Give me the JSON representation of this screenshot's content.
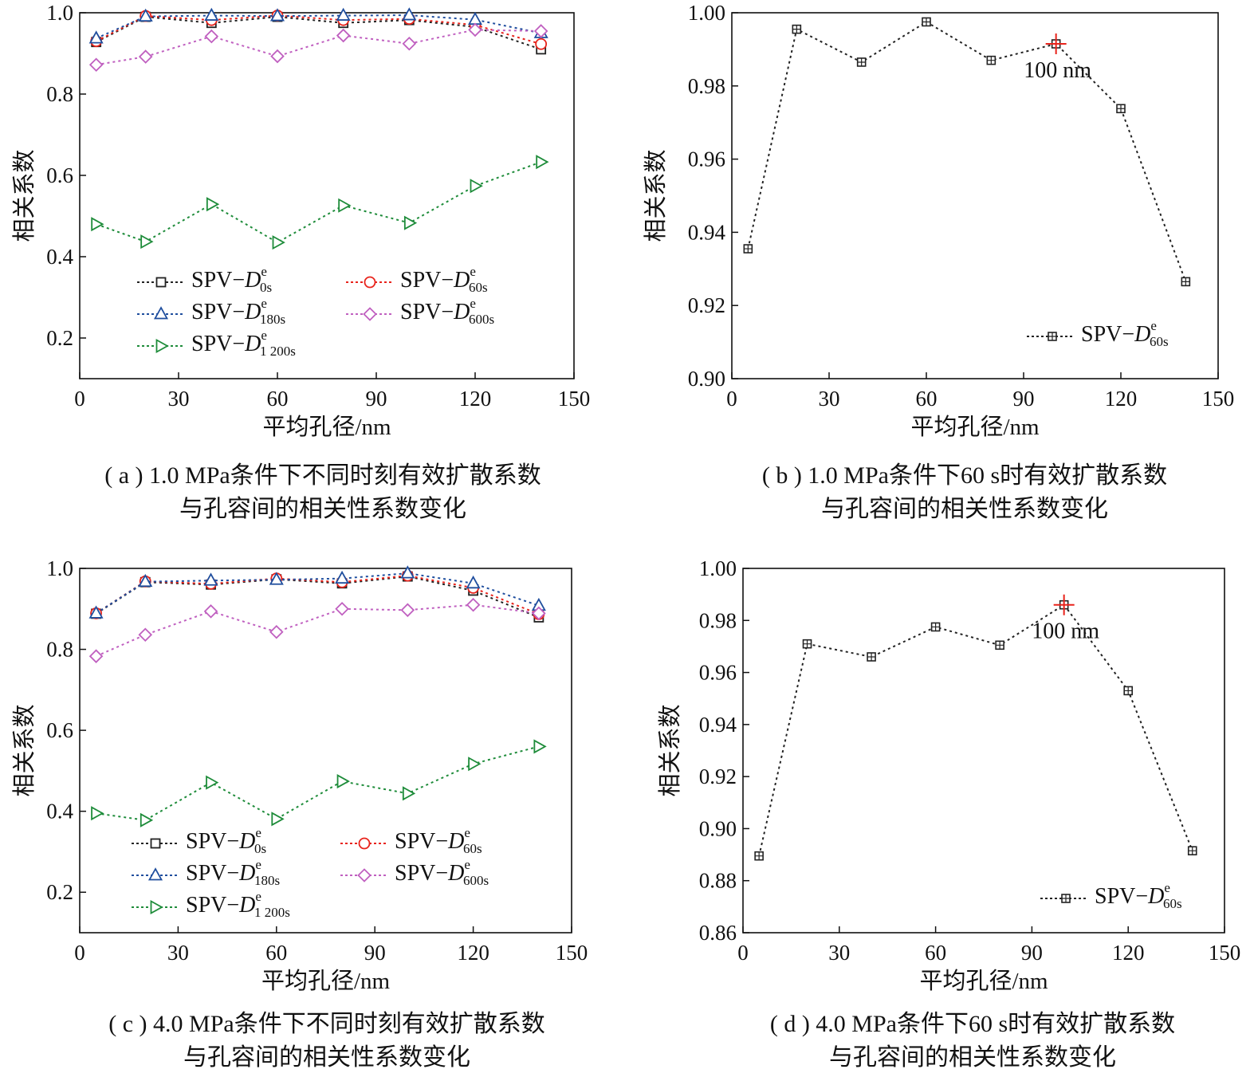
{
  "chart_data": [
    {
      "type": "line",
      "xlabel": "平均孔径/nm",
      "ylabel": "相关系数",
      "xlim": [
        0,
        150
      ],
      "ylim": [
        0.1,
        1.0
      ],
      "xticks": [
        "0",
        "30",
        "60",
        "90",
        "120",
        "150"
      ],
      "yticks": [
        "0.2",
        "0.4",
        "0.6",
        "0.8",
        "1.0"
      ],
      "x": [
        5,
        20,
        40,
        60,
        80,
        100,
        120,
        140
      ],
      "legend_position": "bottom-left",
      "caption_line1": "( a ) 1.0 MPa条件下不同时刻有效扩散系数",
      "caption_line2": "与孔容间的相关性系数变化",
      "series": [
        {
          "name": "SPV−D",
          "sup": "e",
          "sub": "0s",
          "color": "#222222",
          "marker": "square",
          "values": [
            0.928,
            0.99,
            0.975,
            0.99,
            0.975,
            0.982,
            0.965,
            0.91
          ]
        },
        {
          "name": "SPV−D",
          "sup": "e",
          "sub": "60s",
          "color": "#e8231b",
          "marker": "circle",
          "values": [
            0.93,
            0.992,
            0.982,
            0.993,
            0.982,
            0.985,
            0.97,
            0.923
          ]
        },
        {
          "name": "SPV−D",
          "sup": "e",
          "sub": "180s",
          "color": "#1f4e9e",
          "marker": "triangle-up",
          "values": [
            0.937,
            0.991,
            0.993,
            0.992,
            0.993,
            0.994,
            0.983,
            0.95
          ]
        },
        {
          "name": "SPV−D",
          "sup": "e",
          "sub": "600s",
          "color": "#c060c0",
          "marker": "diamond",
          "values": [
            0.872,
            0.892,
            0.942,
            0.893,
            0.944,
            0.924,
            0.958,
            0.955
          ]
        },
        {
          "name": "SPV−D",
          "sup": "e",
          "sub": "1 200s",
          "color": "#1e8c3a",
          "marker": "triangle-right",
          "values": [
            0.48,
            0.437,
            0.529,
            0.435,
            0.526,
            0.483,
            0.574,
            0.633
          ]
        }
      ]
    },
    {
      "type": "line",
      "xlabel": "平均孔径/nm",
      "ylabel": "相关系数",
      "xlim": [
        0,
        150
      ],
      "ylim": [
        0.9,
        1.0
      ],
      "xticks": [
        "0",
        "30",
        "60",
        "90",
        "120",
        "150"
      ],
      "yticks": [
        "0.90",
        "0.92",
        "0.94",
        "0.96",
        "0.98",
        "1.00"
      ],
      "x": [
        5,
        20,
        40,
        60,
        80,
        100,
        120,
        140
      ],
      "legend_position": "bottom-right",
      "annotation": {
        "text": "100 nm",
        "x": 100,
        "y": 0.9915
      },
      "caption_line1": "( b ) 1.0 MPa条件下60 s时有效扩散系数",
      "caption_line2": "与孔容间的相关性系数变化",
      "series": [
        {
          "name": "SPV−D",
          "sup": "e",
          "sub": "60s",
          "color": "#222222",
          "marker": "square",
          "values": [
            0.9355,
            0.9955,
            0.9865,
            0.9975,
            0.987,
            0.9915,
            0.9738,
            0.9265
          ]
        }
      ]
    },
    {
      "type": "line",
      "xlabel": "平均孔径/nm",
      "ylabel": "相关系数",
      "xlim": [
        0,
        150
      ],
      "ylim": [
        0.1,
        1.0
      ],
      "xticks": [
        "0",
        "30",
        "60",
        "90",
        "120",
        "150"
      ],
      "yticks": [
        "0.2",
        "0.4",
        "0.6",
        "0.8",
        "1.0"
      ],
      "x": [
        5,
        20,
        40,
        60,
        80,
        100,
        120,
        140
      ],
      "legend_position": "bottom-left",
      "caption_line1": "( c ) 4.0 MPa条件下不同时刻有效扩散系数",
      "caption_line2": "与孔容间的相关性系数变化",
      "series": [
        {
          "name": "SPV−D",
          "sup": "e",
          "sub": "0s",
          "color": "#222222",
          "marker": "square",
          "values": [
            0.888,
            0.966,
            0.96,
            0.973,
            0.963,
            0.98,
            0.945,
            0.879
          ]
        },
        {
          "name": "SPV−D",
          "sup": "e",
          "sub": "60s",
          "color": "#e8231b",
          "marker": "circle",
          "values": [
            0.889,
            0.968,
            0.962,
            0.975,
            0.966,
            0.982,
            0.952,
            0.887
          ]
        },
        {
          "name": "SPV−D",
          "sup": "e",
          "sub": "180s",
          "color": "#1f4e9e",
          "marker": "triangle-up",
          "values": [
            0.889,
            0.967,
            0.97,
            0.972,
            0.975,
            0.988,
            0.963,
            0.908
          ]
        },
        {
          "name": "SPV−D",
          "sup": "e",
          "sub": "600s",
          "color": "#c060c0",
          "marker": "diamond",
          "values": [
            0.783,
            0.836,
            0.894,
            0.843,
            0.9,
            0.897,
            0.91,
            0.889
          ]
        },
        {
          "name": "SPV−D",
          "sup": "e",
          "sub": "1 200s",
          "color": "#1e8c3a",
          "marker": "triangle-right",
          "values": [
            0.395,
            0.378,
            0.471,
            0.381,
            0.474,
            0.444,
            0.517,
            0.56
          ]
        }
      ]
    },
    {
      "type": "line",
      "xlabel": "平均孔径/nm",
      "ylabel": "相关系数",
      "xlim": [
        0,
        150
      ],
      "ylim": [
        0.86,
        1.0
      ],
      "xticks": [
        "0",
        "30",
        "60",
        "90",
        "120",
        "150"
      ],
      "yticks": [
        "0.86",
        "0.88",
        "0.90",
        "0.92",
        "0.94",
        "0.96",
        "0.98",
        "1.00"
      ],
      "x": [
        5,
        20,
        40,
        60,
        80,
        100,
        120,
        140
      ],
      "legend_position": "bottom-right",
      "annotation": {
        "text": "100 nm",
        "x": 100,
        "y": 0.986
      },
      "caption_line1": "( d ) 4.0 MPa条件下60 s时有效扩散系数",
      "caption_line2": "与孔容间的相关性系数变化",
      "series": [
        {
          "name": "SPV−D",
          "sup": "e",
          "sub": "60s",
          "color": "#222222",
          "marker": "square",
          "values": [
            0.8895,
            0.971,
            0.966,
            0.9775,
            0.9705,
            0.986,
            0.953,
            0.8915
          ]
        }
      ]
    }
  ]
}
